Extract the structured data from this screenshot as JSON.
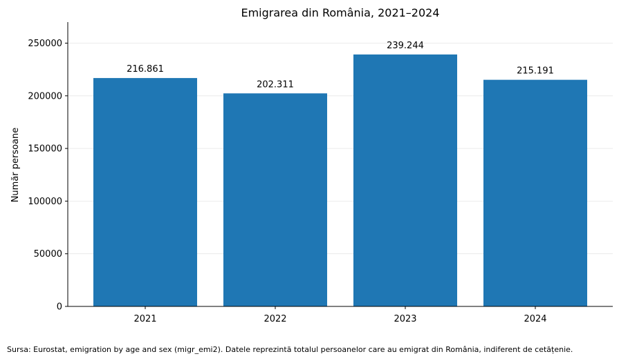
{
  "chart_data": {
    "type": "bar",
    "title": "Emigrarea din România, 2021–2024",
    "xlabel": "",
    "ylabel": "Număr persoane",
    "categories": [
      "2021",
      "2022",
      "2023",
      "2024"
    ],
    "values": [
      216861,
      202311,
      239244,
      215191
    ],
    "value_labels": [
      "216.861",
      "202.311",
      "239.244",
      "215.191"
    ],
    "ylim": [
      0,
      270000
    ],
    "yticks": [
      0,
      50000,
      100000,
      150000,
      200000,
      250000
    ],
    "ytick_labels": [
      "0",
      "50000",
      "100000",
      "150000",
      "200000",
      "250000"
    ],
    "grid": "horizontal",
    "legend": "none",
    "bar_color": "#1f77b4"
  },
  "footer": {
    "source": "Sursa: Eurostat, emigration by age and sex (migr_emi2). Datele reprezintă totalul persoanelor care au emigrat din România, indiferent de cetățenie."
  }
}
